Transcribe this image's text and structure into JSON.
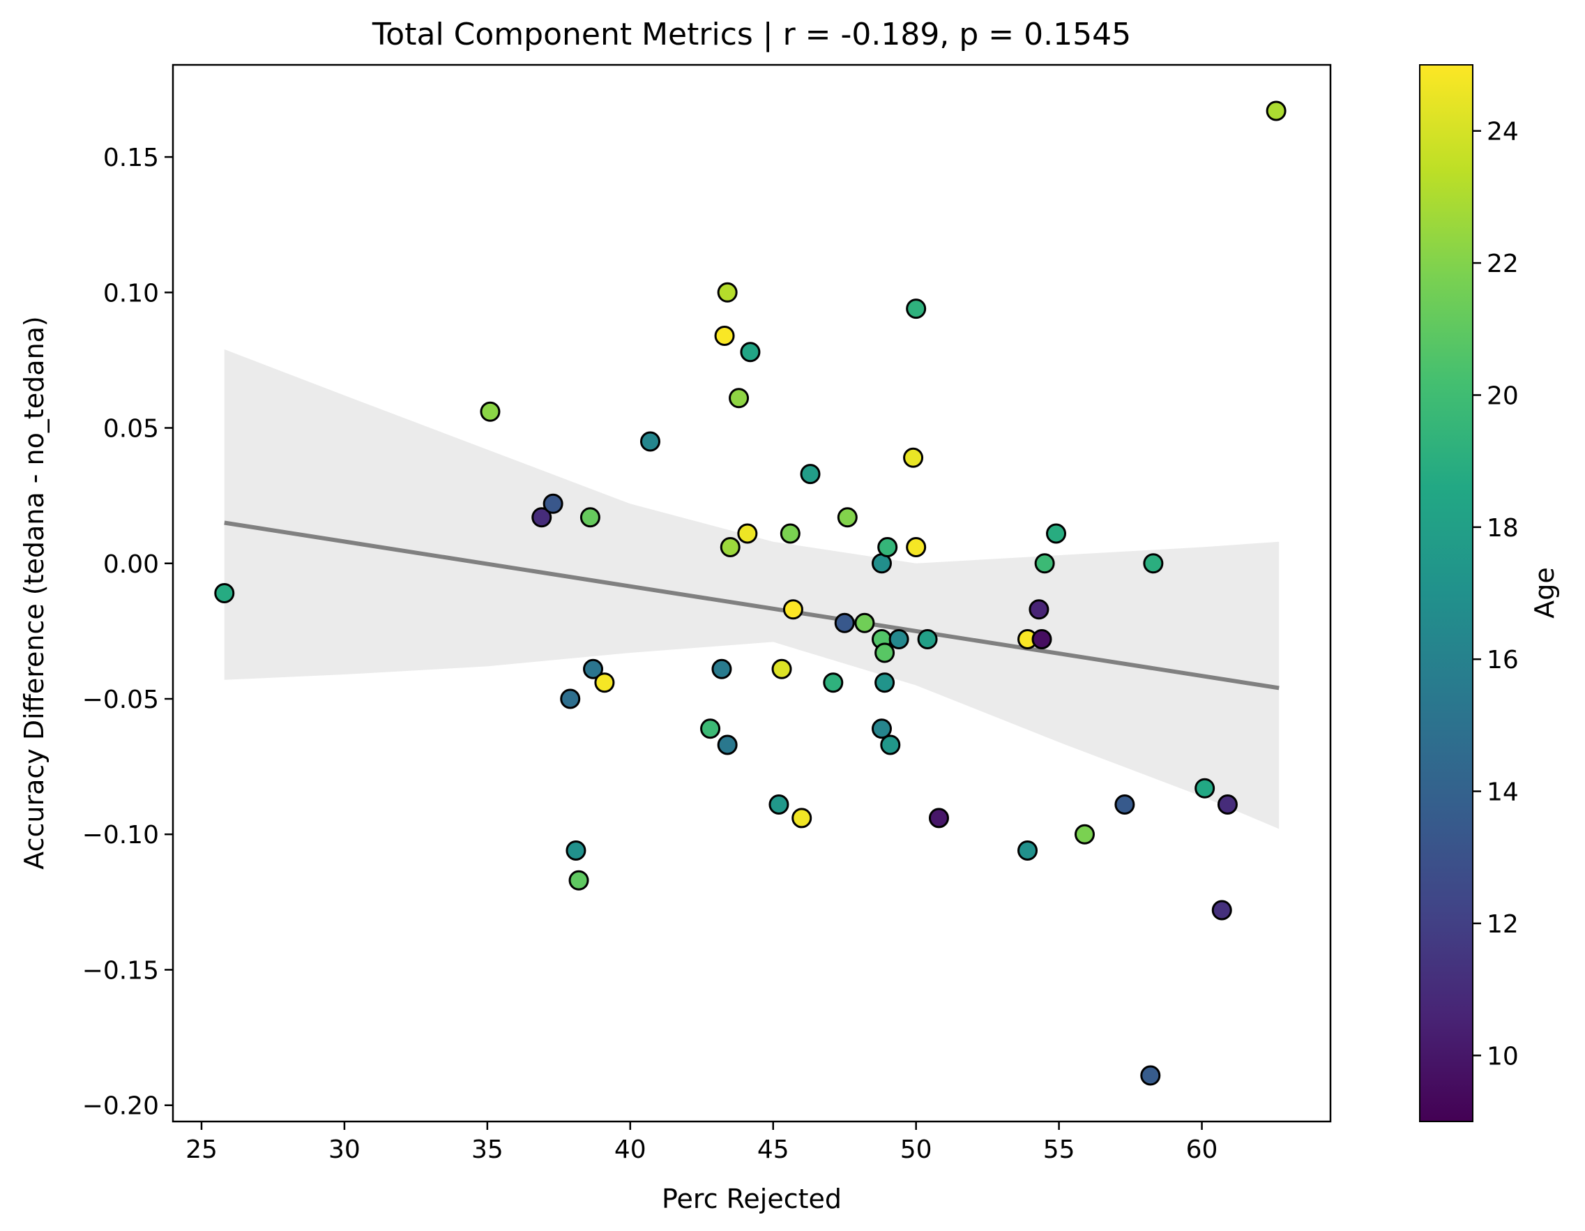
{
  "chart_data": {
    "type": "scatter",
    "title": "Total Component Metrics | r = -0.189, p = 0.1545",
    "xlabel": "Perc Rejected",
    "ylabel": "Accuracy Difference (tedana - no_tedana)",
    "xlim": [
      24.0,
      64.5
    ],
    "ylim": [
      -0.206,
      0.184
    ],
    "x_ticks": [
      25,
      30,
      35,
      40,
      45,
      50,
      55,
      60
    ],
    "x_tick_labels": [
      "25",
      "30",
      "35",
      "40",
      "45",
      "50",
      "55",
      "60"
    ],
    "y_ticks": [
      -0.2,
      -0.15,
      -0.1,
      -0.05,
      0.0,
      0.05,
      0.1,
      0.15
    ],
    "y_tick_labels": [
      "−0.20",
      "−0.15",
      "−0.10",
      "−0.05",
      "0.00",
      "0.05",
      "0.10",
      "0.15"
    ],
    "grid": false,
    "colorbar": {
      "label": "Age",
      "colormap": "viridis",
      "range": [
        9,
        25
      ],
      "ticks": [
        10,
        12,
        14,
        16,
        18,
        20,
        22,
        24
      ],
      "tick_labels": [
        "10",
        "12",
        "14",
        "16",
        "18",
        "20",
        "22",
        "24"
      ]
    },
    "regression": {
      "x": [
        25.8,
        62.7
      ],
      "y": [
        0.015,
        -0.046
      ],
      "color": "#808080",
      "ci_color": "#ebebeb",
      "ci_upper": [
        [
          25.8,
          0.079
        ],
        [
          30,
          0.062
        ],
        [
          35,
          0.042
        ],
        [
          40,
          0.022
        ],
        [
          45,
          0.008
        ],
        [
          50,
          0.0
        ],
        [
          55,
          0.003
        ],
        [
          60,
          0.006
        ],
        [
          62.7,
          0.008
        ]
      ],
      "ci_lower": [
        [
          25.8,
          -0.043
        ],
        [
          30,
          -0.041
        ],
        [
          35,
          -0.038
        ],
        [
          40,
          -0.033
        ],
        [
          45,
          -0.029
        ],
        [
          50,
          -0.045
        ],
        [
          55,
          -0.066
        ],
        [
          60,
          -0.086
        ],
        [
          62.7,
          -0.098
        ]
      ]
    },
    "points": [
      {
        "x": 25.8,
        "y": -0.011,
        "age": 18.8
      },
      {
        "x": 35.1,
        "y": 0.056,
        "age": 22.2
      },
      {
        "x": 36.9,
        "y": 0.017,
        "age": 11.0
      },
      {
        "x": 37.3,
        "y": 0.022,
        "age": 13.3
      },
      {
        "x": 37.9,
        "y": -0.05,
        "age": 14.8
      },
      {
        "x": 38.1,
        "y": -0.106,
        "age": 17.0
      },
      {
        "x": 38.2,
        "y": -0.117,
        "age": 21.0
      },
      {
        "x": 38.6,
        "y": 0.017,
        "age": 21.2
      },
      {
        "x": 38.7,
        "y": -0.039,
        "age": 15.2
      },
      {
        "x": 39.1,
        "y": -0.044,
        "age": 24.8
      },
      {
        "x": 40.7,
        "y": 0.045,
        "age": 16.3
      },
      {
        "x": 42.8,
        "y": -0.061,
        "age": 19.8
      },
      {
        "x": 43.2,
        "y": -0.039,
        "age": 15.6
      },
      {
        "x": 43.3,
        "y": 0.084,
        "age": 24.9
      },
      {
        "x": 43.4,
        "y": 0.1,
        "age": 23.2
      },
      {
        "x": 43.4,
        "y": -0.067,
        "age": 15.4
      },
      {
        "x": 43.5,
        "y": 0.006,
        "age": 22.6
      },
      {
        "x": 43.8,
        "y": 0.061,
        "age": 22.3
      },
      {
        "x": 44.1,
        "y": 0.011,
        "age": 24.6
      },
      {
        "x": 44.2,
        "y": 0.078,
        "age": 18.4
      },
      {
        "x": 45.2,
        "y": -0.089,
        "age": 17.5
      },
      {
        "x": 45.3,
        "y": -0.039,
        "age": 24.2
      },
      {
        "x": 45.6,
        "y": 0.011,
        "age": 21.8
      },
      {
        "x": 45.7,
        "y": -0.017,
        "age": 25.0
      },
      {
        "x": 46.0,
        "y": -0.094,
        "age": 24.7
      },
      {
        "x": 46.3,
        "y": 0.033,
        "age": 17.8
      },
      {
        "x": 47.1,
        "y": -0.044,
        "age": 19.2
      },
      {
        "x": 47.5,
        "y": -0.022,
        "age": 13.4
      },
      {
        "x": 47.6,
        "y": 0.017,
        "age": 22.0
      },
      {
        "x": 48.2,
        "y": -0.022,
        "age": 21.5
      },
      {
        "x": 48.8,
        "y": 0.0,
        "age": 16.9
      },
      {
        "x": 48.8,
        "y": -0.028,
        "age": 20.6
      },
      {
        "x": 48.8,
        "y": -0.061,
        "age": 16.2
      },
      {
        "x": 48.9,
        "y": -0.033,
        "age": 20.8
      },
      {
        "x": 48.9,
        "y": -0.044,
        "age": 17.2
      },
      {
        "x": 49.0,
        "y": 0.006,
        "age": 19.5
      },
      {
        "x": 49.1,
        "y": -0.067,
        "age": 17.4
      },
      {
        "x": 49.4,
        "y": -0.028,
        "age": 16.4
      },
      {
        "x": 49.9,
        "y": 0.039,
        "age": 24.5
      },
      {
        "x": 50.0,
        "y": 0.094,
        "age": 19.2
      },
      {
        "x": 50.0,
        "y": 0.006,
        "age": 24.8
      },
      {
        "x": 50.4,
        "y": -0.028,
        "age": 18.0
      },
      {
        "x": 50.8,
        "y": -0.094,
        "age": 10.0
      },
      {
        "x": 53.9,
        "y": -0.028,
        "age": 24.9
      },
      {
        "x": 53.9,
        "y": -0.106,
        "age": 17.0
      },
      {
        "x": 54.3,
        "y": -0.017,
        "age": 10.6
      },
      {
        "x": 54.4,
        "y": -0.028,
        "age": 9.6
      },
      {
        "x": 54.5,
        "y": 0.0,
        "age": 19.8
      },
      {
        "x": 54.9,
        "y": 0.011,
        "age": 18.9
      },
      {
        "x": 55.9,
        "y": -0.1,
        "age": 21.8
      },
      {
        "x": 57.3,
        "y": -0.089,
        "age": 13.5
      },
      {
        "x": 58.2,
        "y": -0.189,
        "age": 13.6
      },
      {
        "x": 58.3,
        "y": 0.0,
        "age": 19.0
      },
      {
        "x": 60.1,
        "y": -0.083,
        "age": 18.6
      },
      {
        "x": 60.7,
        "y": -0.128,
        "age": 11.2
      },
      {
        "x": 60.9,
        "y": -0.089,
        "age": 11.0
      },
      {
        "x": 62.6,
        "y": 0.167,
        "age": 23.0
      }
    ]
  }
}
